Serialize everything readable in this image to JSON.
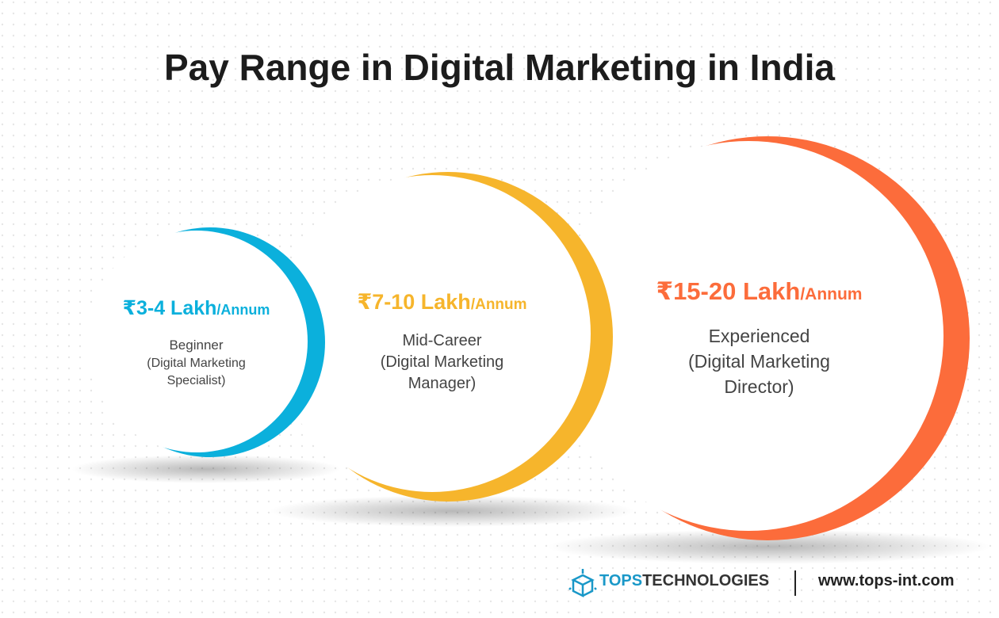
{
  "title": "Pay Range in Digital Marketing in India",
  "levels": [
    {
      "salary": "₹3-4 Lakh",
      "unit": "/Annum",
      "role": "Beginner",
      "detail": "(Digital Marketing Specialist)"
    },
    {
      "salary": "₹7-10 Lakh",
      "unit": "/Annum",
      "role": "Mid-Career",
      "detail": "(Digital Marketing Manager)"
    },
    {
      "salary": "₹15-20 Lakh",
      "unit": "/Annum",
      "role": "Experienced",
      "detail": "(Digital Marketing Director)"
    }
  ],
  "footer": {
    "brand_bold": "TOPS",
    "brand_rest": "TECHNOLOGIES",
    "url": "www.tops-int.com"
  }
}
